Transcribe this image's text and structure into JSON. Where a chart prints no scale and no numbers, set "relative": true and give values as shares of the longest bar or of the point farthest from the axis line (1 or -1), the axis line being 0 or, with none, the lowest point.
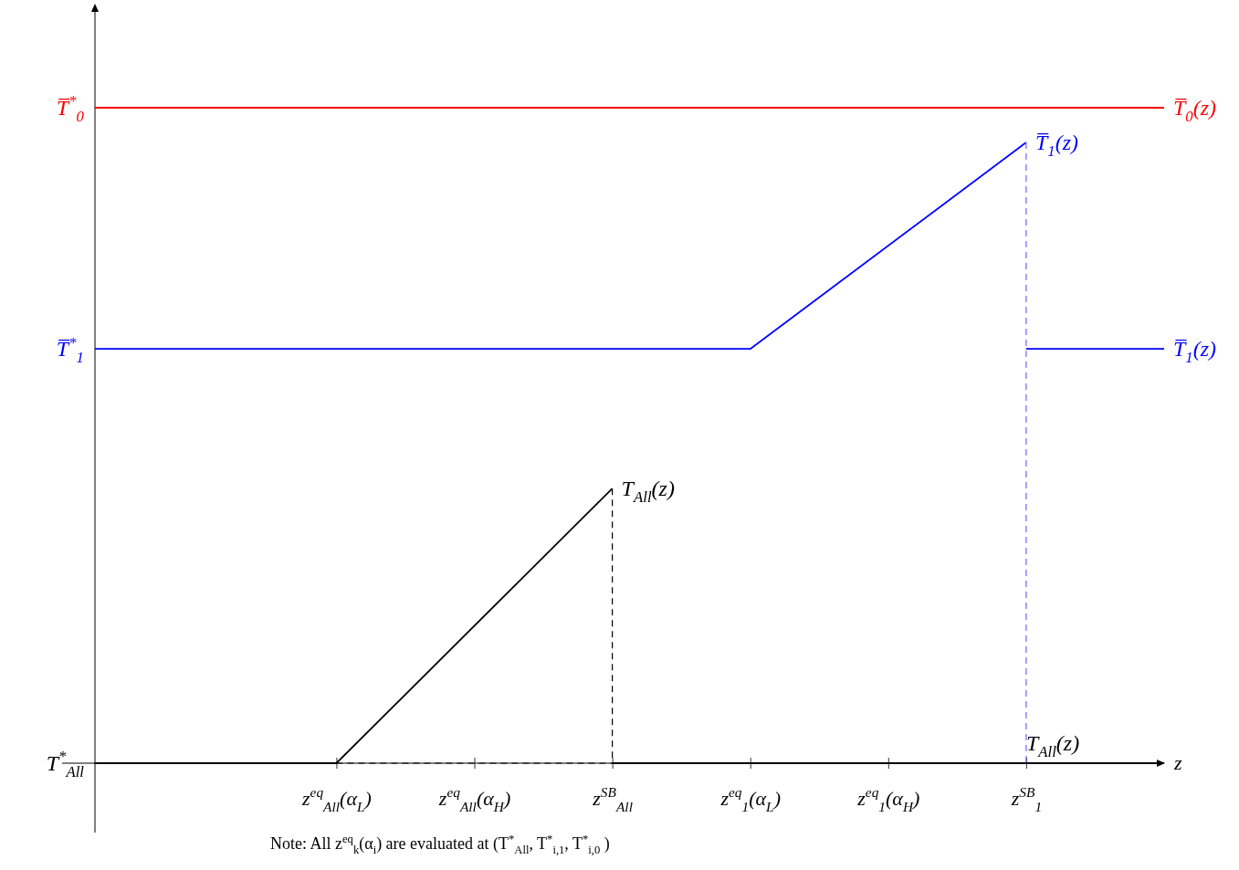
{
  "chart_data": {
    "type": "line",
    "relative": true,
    "xlabel": "z",
    "categories": [
      null,
      null,
      null,
      null,
      null,
      null,
      null,
      "z$^{eq}$$_{All}$(α$_{L}$)",
      null,
      null,
      null,
      "z$^{eq}$$_{All}$(α$_{H}$)",
      null,
      null,
      null,
      "z$^{SB}$$_{All}$",
      null,
      null,
      null,
      "z$^{eq}$$_{1}$(α$_{L}$)",
      null,
      null,
      null,
      "z$^{eq}$$_{1}$(α$_{H}$)",
      null,
      null,
      null,
      "z$^{SB}$$_{1}$",
      null,
      null,
      null,
      null
    ],
    "series": [
      {
        "name": "T̅$_{0}$(z)",
        "color": "#ff0000",
        "values": [
          1,
          null,
          null,
          null,
          null,
          null,
          null,
          null,
          null,
          null,
          null,
          null,
          null,
          null,
          null,
          null,
          null,
          null,
          null,
          null,
          null,
          null,
          null,
          null,
          null,
          null,
          null,
          null,
          null,
          null,
          null,
          1
        ]
      },
      {
        "name": "T̅$_{1}$(z)",
        "color": "#0000ff",
        "values": [
          0.632,
          null,
          null,
          null,
          null,
          null,
          null,
          null,
          null,
          null,
          null,
          null,
          null,
          null,
          null,
          null,
          null,
          null,
          null,
          0.632,
          null,
          null,
          null,
          null,
          null,
          null,
          null,
          0.947,
          null,
          null,
          null,
          null
        ]
      },
      {
        "color": "#6666ff",
        "x": [
          "z$^{SB}$$_{1}$",
          "z$^{SB}$$_{1}$"
        ],
        "values": [
          0.947,
          0
        ],
        "line_style": "dashed"
      },
      {
        "name": "T̅$_{1}$(z)",
        "color": "#0000ff",
        "values": [
          null,
          null,
          null,
          null,
          null,
          null,
          null,
          null,
          null,
          null,
          null,
          null,
          null,
          null,
          null,
          null,
          null,
          null,
          null,
          null,
          null,
          null,
          null,
          null,
          null,
          null,
          null,
          0.632,
          null,
          null,
          null,
          0.632
        ]
      },
      {
        "name": "T$_{All}$(z)",
        "color": "#000000",
        "values": [
          0,
          null,
          null,
          null,
          null,
          null,
          null,
          0,
          null,
          null,
          null,
          null,
          null,
          null,
          null,
          0.419,
          null,
          null,
          null,
          null,
          null,
          null,
          null,
          null,
          null,
          null,
          null,
          null,
          null,
          null,
          null,
          null
        ]
      },
      {
        "color": "#000000",
        "x": [
          "z$^{SB}$$_{All}$",
          "z$^{SB}$$_{All}$"
        ],
        "values": [
          0.419,
          0
        ],
        "line_style": "dashed"
      },
      {
        "color": "#000000",
        "values": [
          null,
          null,
          null,
          null,
          null,
          null,
          null,
          0,
          null,
          null,
          null,
          null,
          null,
          null,
          null,
          0,
          null,
          null,
          null,
          null,
          null,
          null,
          null,
          null,
          null,
          null,
          null,
          null,
          null,
          null,
          null,
          null
        ],
        "line_style": "dashed"
      },
      {
        "name": "T$_{All}$(z)",
        "color": "#000000",
        "values": [
          null,
          null,
          null,
          null,
          null,
          null,
          null,
          null,
          null,
          null,
          null,
          null,
          null,
          null,
          null,
          0,
          null,
          null,
          null,
          null,
          null,
          null,
          null,
          null,
          null,
          null,
          null,
          null,
          null,
          null,
          null,
          0
        ]
      }
    ],
    "annotations": [
      "T̅$^{*}$$_{0}$",
      "T̅$^{*}$$_{1}$",
      "T$^{*}$$_{All}$",
      "Note: All z$^{eq}$$_{k}$(α$_{i}$) are evaluated at (T$^{*}$$_{All}$, T$^{*}$$_{i,1}$, T$^{*}$$_{i,0}$ )"
    ],
    "line_style": "solid"
  }
}
